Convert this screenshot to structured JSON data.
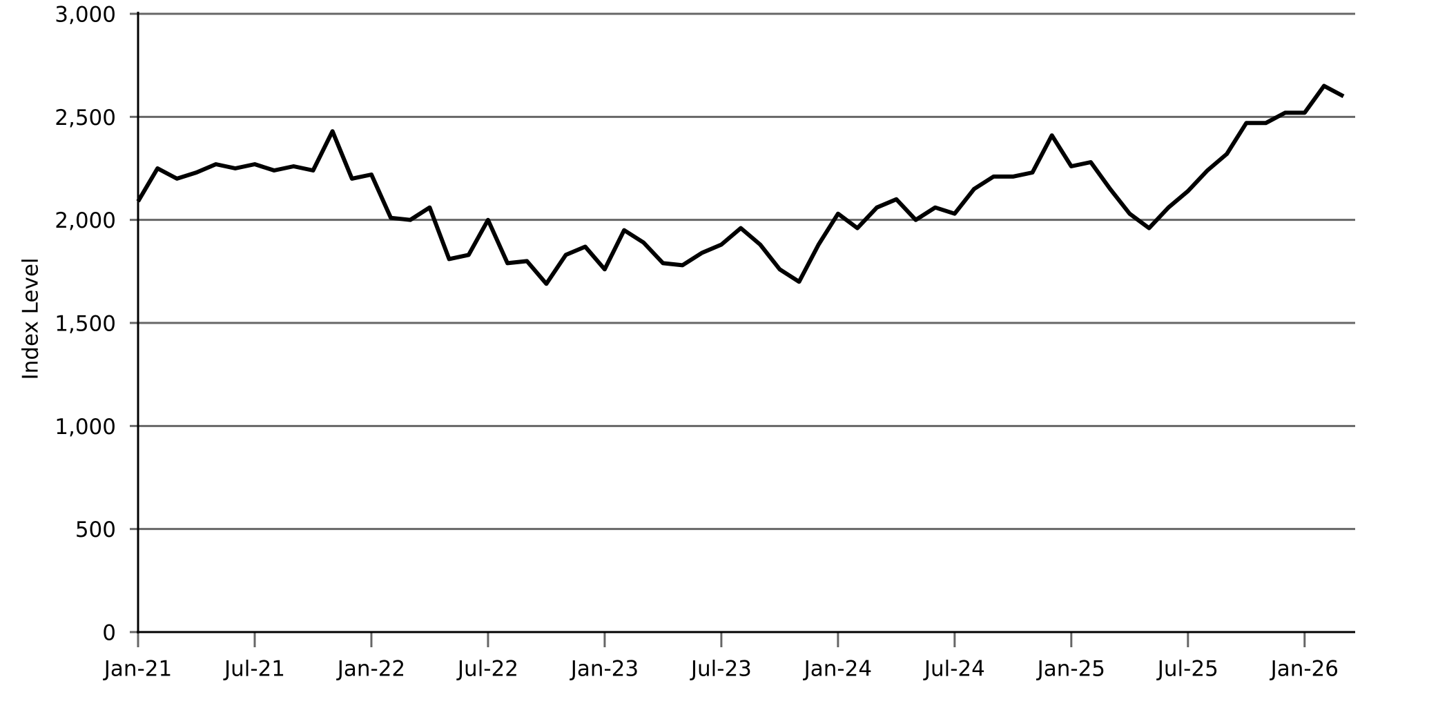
{
  "chart_data": {
    "type": "line",
    "y_label": "Index Level",
    "x": [
      "Jan-21",
      "Feb-21",
      "Mar-21",
      "Apr-21",
      "May-21",
      "Jun-21",
      "Jul-21",
      "Aug-21",
      "Sep-21",
      "Oct-21",
      "Nov-21",
      "Dec-21",
      "Jan-22",
      "Feb-22",
      "Mar-22",
      "Apr-22",
      "May-22",
      "Jun-22",
      "Jul-22",
      "Aug-22",
      "Sep-22",
      "Oct-22",
      "Nov-22",
      "Dec-22",
      "Jan-23",
      "Feb-23",
      "Mar-23",
      "Apr-23",
      "May-23",
      "Jun-23",
      "Jul-23",
      "Aug-23",
      "Sep-23",
      "Oct-23",
      "Nov-23",
      "Dec-23",
      "Jan-24",
      "Feb-24",
      "Mar-24",
      "Apr-24",
      "May-24",
      "Jun-24",
      "Jul-24",
      "Aug-24",
      "Sep-24",
      "Oct-24",
      "Nov-24",
      "Dec-24",
      "Jan-25",
      "Feb-25",
      "Mar-25",
      "Apr-25",
      "May-25",
      "Jun-25",
      "Jul-25",
      "Aug-25",
      "Sep-25",
      "Oct-25",
      "Nov-25",
      "Dec-25",
      "Jan-26",
      "Feb-26",
      "Mar-26"
    ],
    "series": [
      {
        "name": "Index Level",
        "color": "#000000",
        "values": [
          2090,
          2250,
          2200,
          2230,
          2270,
          2250,
          2270,
          2240,
          2260,
          2240,
          2430,
          2200,
          2220,
          2010,
          2000,
          2060,
          1810,
          1830,
          2000,
          1790,
          1800,
          1690,
          1830,
          1870,
          1760,
          1950,
          1890,
          1790,
          1780,
          1840,
          1880,
          1960,
          1880,
          1760,
          1700,
          1880,
          2030,
          1960,
          2060,
          2100,
          2000,
          2060,
          2030,
          2150,
          2210,
          2210,
          2230,
          2410,
          2260,
          2280,
          2150,
          2030,
          1960,
          2060,
          2140,
          2240,
          2320,
          2470,
          2470,
          2520,
          2520,
          2650,
          2600
        ]
      }
    ],
    "xlim": [
      "Jan-21",
      "Mar-26"
    ],
    "xticks": [
      "Jan-21",
      "Jul-21",
      "Jan-22",
      "Jul-22",
      "Jan-23",
      "Jul-23",
      "Jan-24",
      "Jul-24",
      "Jan-25",
      "Jul-25",
      "Jan-26"
    ],
    "ylim": [
      0,
      3000
    ],
    "yticks": [
      0,
      500,
      {
        "value": 1000,
        "label": "1,000"
      },
      {
        "value": 1500,
        "label": "1,500"
      },
      {
        "value": 2000,
        "label": "2,000"
      },
      {
        "value": 2500,
        "label": "2,500"
      },
      {
        "value": 3000,
        "label": "3,000"
      }
    ],
    "grid": true
  }
}
